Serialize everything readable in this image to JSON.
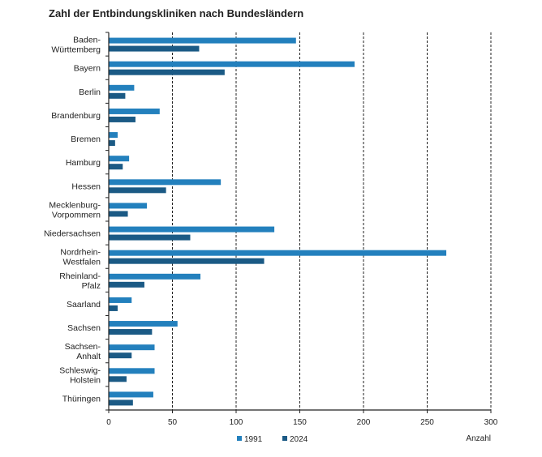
{
  "chart_data": {
    "type": "bar",
    "orientation": "horizontal",
    "title": "Zahl der Entbindungskliniken nach Bundesländern",
    "xlabel": "Anzahl",
    "ylabel": "",
    "xlim": [
      0,
      300
    ],
    "xticks": [
      0,
      50,
      100,
      150,
      200,
      250,
      300
    ],
    "grid": "vertical dashed",
    "legend_position": "bottom",
    "categories": [
      [
        "Baden-",
        "Württemberg"
      ],
      [
        "Bayern"
      ],
      [
        "Berlin"
      ],
      [
        "Brandenburg"
      ],
      [
        "Bremen"
      ],
      [
        "Hamburg"
      ],
      [
        "Hessen"
      ],
      [
        "Mecklenburg-",
        "Vorpommern"
      ],
      [
        "Niedersachsen"
      ],
      [
        "Nordrhein-",
        "Westfalen"
      ],
      [
        "Rheinland-",
        "Pfalz"
      ],
      [
        "Saarland"
      ],
      [
        "Sachsen"
      ],
      [
        "Sachsen-",
        "Anhalt"
      ],
      [
        "Schleswig-",
        "Holstein"
      ],
      [
        "Thüringen"
      ]
    ],
    "series": [
      {
        "name": "1991",
        "color": "#2380bd",
        "values": [
          147,
          193,
          20,
          40,
          7,
          16,
          88,
          30,
          130,
          265,
          72,
          18,
          54,
          36,
          36,
          35
        ]
      },
      {
        "name": "2024",
        "color": "#1b5a85",
        "values": [
          71,
          91,
          13,
          21,
          5,
          11,
          45,
          15,
          64,
          122,
          28,
          7,
          34,
          18,
          14,
          19
        ]
      }
    ]
  }
}
